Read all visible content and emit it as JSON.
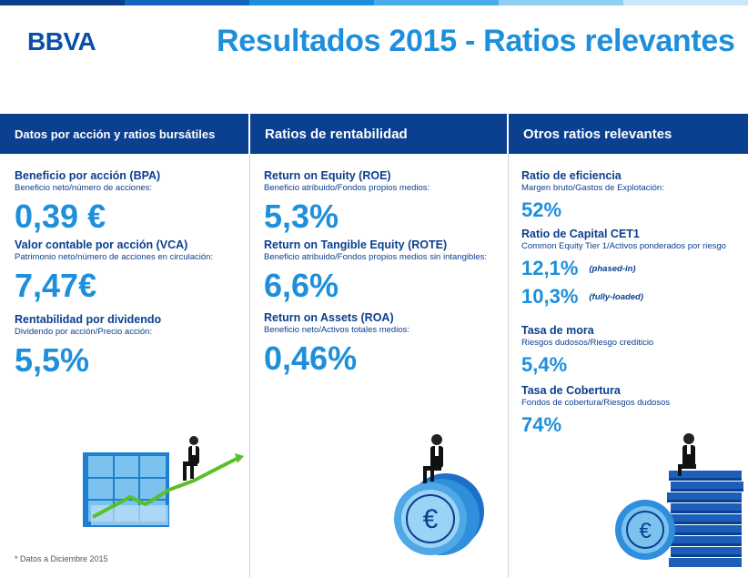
{
  "brand": {
    "logo": "BBVA",
    "title": "Resultados 2015 - Ratios relevantes"
  },
  "colors": {
    "navy": "#0b3f8f",
    "blue": "#1d8fdc",
    "green": "#5bbf2b",
    "topbar": [
      "#0a3f8e",
      "#1465bd",
      "#1c8fdc",
      "#49abe8",
      "#8fcff3",
      "#c9e8fa"
    ]
  },
  "columns": [
    {
      "header": "Datos por acción y ratios bursátiles",
      "items": [
        {
          "label": "Beneficio por acción (BPA)",
          "sub": "Beneficio neto/número de acciones:",
          "value": "0,39 €"
        },
        {
          "label": "Valor contable por acción (VCA)",
          "sub": "Patrimonio neto/número de acciones en circulación:",
          "value": "7,47€"
        },
        {
          "label": "Rentabilidad por dividendo",
          "sub": "Dividendo por acción/Precio acción:",
          "value": "5,5%"
        }
      ]
    },
    {
      "header": "Ratios de rentabilidad",
      "items": [
        {
          "label": "Return on Equity (ROE)",
          "sub": "Beneficio atribuido/Fondos propios medios:",
          "value": "5,3%"
        },
        {
          "label": "Return on Tangible Equity (ROTE)",
          "sub": "Beneficio atribuido/Fondos propios medios sin intangibles:",
          "value": "6,6%"
        },
        {
          "label": "Return on Assets (ROA)",
          "sub": "Beneficio neto/Activos totales medios:",
          "value": "0,46%"
        }
      ]
    },
    {
      "header": "Otros ratios relevantes",
      "items": [
        {
          "label": "Ratio de eficiencia",
          "sub": "Margen bruto/Gastos de Explotación:",
          "value": "52%"
        },
        {
          "label": "Ratio de Capital CET1",
          "sub": "Common Equity Tier 1/Activos ponderados por riesgo",
          "value": "12,1%",
          "note": "(phased-in)",
          "value2": "10,3%",
          "note2": "(fully-loaded)"
        },
        {
          "label": "Tasa de mora",
          "sub": "Riesgos dudosos/Riesgo crediticio",
          "value": "5,4%"
        },
        {
          "label": "Tasa de  Cobertura",
          "sub": "Fondos de cobertura/Riesgos dudosos",
          "value": "74%"
        }
      ]
    }
  ],
  "footnote": "* Datos a Diciembre 2015"
}
